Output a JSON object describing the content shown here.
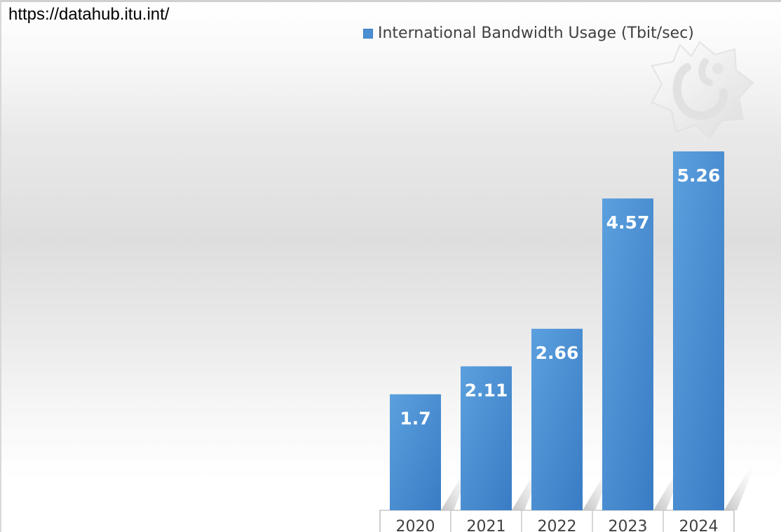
{
  "source_url": "https://datahub.itu.int/",
  "colors": {
    "bar": "#4a8fd4",
    "bar_dark": "#3a7cc4",
    "label": "#ffffff",
    "axis_text": "#404040"
  },
  "chart_data": {
    "type": "bar",
    "categories": [
      "2020",
      "2021",
      "2022",
      "2023",
      "2024"
    ],
    "series": [
      {
        "name": "International Bandwidth Usage  (Tbit/sec)",
        "values": [
          1.7,
          2.11,
          2.66,
          4.57,
          5.26
        ]
      }
    ],
    "data_labels": [
      "1.7",
      "2.11",
      "2.66",
      "4.57",
      "5.26"
    ],
    "title": "",
    "xlabel": "",
    "ylabel": "",
    "ylim": [
      0,
      6
    ],
    "grid": false,
    "legend_position": "top-right"
  }
}
